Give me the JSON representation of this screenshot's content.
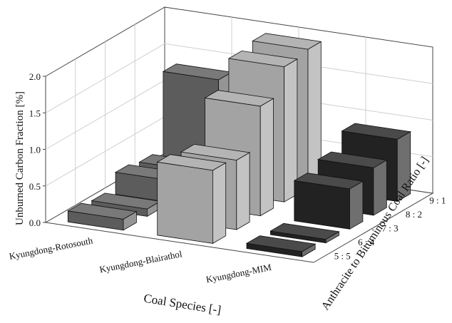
{
  "chart_data": {
    "type": "bar3d",
    "title": "",
    "x_axis_label": "Coal Species  [-]",
    "y_axis_label": "Anthracite to Bituminous Coal Ratio [-]",
    "z_axis_label": "Unburned Carbon Fraction  [%]",
    "coal_species": [
      "Kyungdong-Rotosouth",
      "Kyungdong-Blairathol",
      "Kyungdong-MIM"
    ],
    "ratios": [
      "5 : 5",
      "6 : 4",
      "7 : 3",
      "8 : 2",
      "9 : 1"
    ],
    "z_ticks": [
      "0.0",
      "0.5",
      "1.0",
      "1.5",
      "2.0"
    ],
    "zlim": [
      0,
      2.0
    ],
    "grid": true,
    "series": [
      {
        "coal": "Kyungdong-Rotosouth",
        "color": "#5c5c5c",
        "values": [
          0.15,
          0.1,
          0.3,
          0.25,
          1.3
        ]
      },
      {
        "coal": "Kyungdong-Blairathol",
        "color": "#a3a3a3",
        "values": [
          1.0,
          0.95,
          1.5,
          1.85,
          1.9
        ]
      },
      {
        "coal": "Kyungdong-MIM",
        "color": "#222222",
        "values": [
          0.07,
          0.05,
          0.55,
          0.65,
          0.85
        ]
      }
    ]
  }
}
